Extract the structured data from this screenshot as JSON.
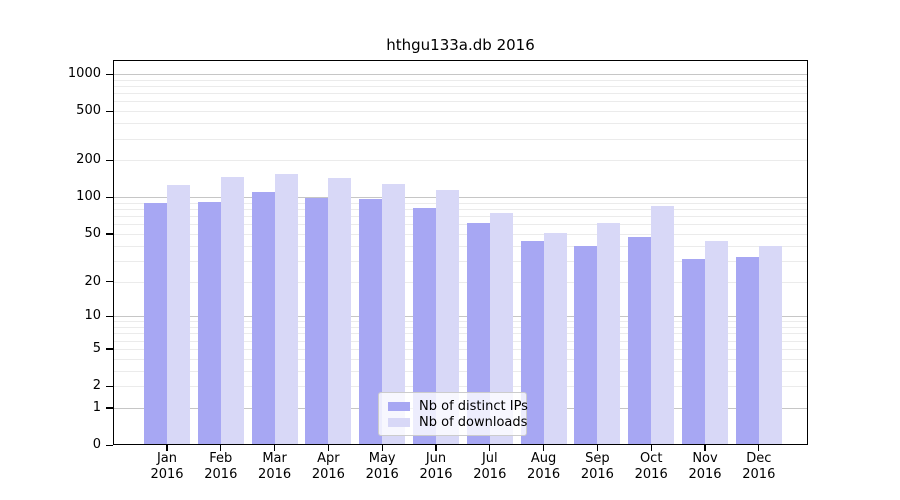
{
  "chart_data": {
    "type": "bar",
    "title": "hthgu133a.db 2016",
    "x_months": [
      "Jan",
      "Feb",
      "Mar",
      "Apr",
      "May",
      "Jun",
      "Jul",
      "Aug",
      "Sep",
      "Oct",
      "Nov",
      "Dec"
    ],
    "x_year": "2016",
    "categories": [
      "Jan 2016",
      "Feb 2016",
      "Mar 2016",
      "Apr 2016",
      "May 2016",
      "Jun 2016",
      "Jul 2016",
      "Aug 2016",
      "Sep 2016",
      "Oct 2016",
      "Nov 2016",
      "Dec 2016"
    ],
    "series": [
      {
        "name": "Nb of distinct IPs",
        "color": "#a7a7f3",
        "values": [
          89,
          91,
          110,
          98,
          97,
          81,
          62,
          44,
          40,
          47,
          31,
          32
        ]
      },
      {
        "name": "Nb of downloads",
        "color": "#d8d8f7",
        "values": [
          125,
          146,
          155,
          143,
          128,
          114,
          74,
          51,
          61,
          84,
          44,
          40
        ]
      }
    ],
    "y_scale": "log10(1+x)",
    "y_ticks": [
      1000,
      500,
      200,
      100,
      50,
      20,
      10,
      5,
      2,
      1,
      0
    ],
    "y_major_gridlines": [
      1,
      10,
      100,
      1000
    ],
    "ylim": [
      0,
      1300
    ],
    "grid": true,
    "legend_position": "bottom-center",
    "colors": {
      "major_grid": "#c6c6c6",
      "minor_grid": "#ebebeb",
      "frame": "#000000",
      "background": "#ffffff"
    }
  }
}
